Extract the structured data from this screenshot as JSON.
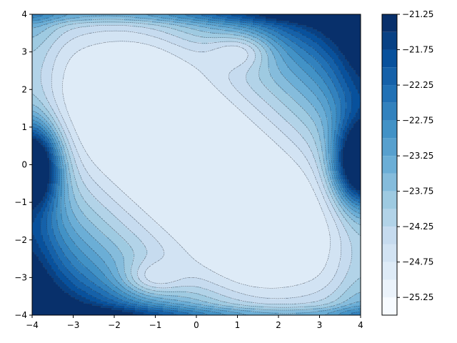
{
  "chart_data": {
    "type": "contour",
    "title": "",
    "xlabel": "",
    "ylabel": "",
    "xlim": [
      -4,
      4
    ],
    "ylim": [
      -4,
      4
    ],
    "x_ticks": [
      "−4",
      "−3",
      "−2",
      "−1",
      "0",
      "1",
      "2",
      "3",
      "4"
    ],
    "y_ticks": [
      "−4",
      "−3",
      "−2",
      "−1",
      "0",
      "1",
      "2",
      "3",
      "4"
    ],
    "grid": false,
    "colormap": "Blues",
    "levels": [
      -25.5,
      -25.25,
      -25.0,
      -24.75,
      -24.5,
      -24.25,
      -24.0,
      -23.75,
      -23.5,
      -23.25,
      -23.0,
      -22.75,
      -22.5,
      -22.25,
      -22.0,
      -21.75,
      -21.5,
      -21.25
    ],
    "colorbar_range": [
      -25.5,
      -21.25
    ],
    "colorbar_ticks": [
      "−21.25",
      "−21.75",
      "−22.25",
      "−22.75",
      "−23.25",
      "−23.75",
      "−24.25",
      "−24.75",
      "−25.25"
    ],
    "minima": [
      {
        "x": 1.1,
        "y": 3.05,
        "value": -25.4
      },
      {
        "x": -1.1,
        "y": -3.05,
        "value": -25.4
      }
    ],
    "maxima": [
      {
        "x": -4.0,
        "y": 0.0,
        "value": -21.3
      },
      {
        "x": 4.0,
        "y": 0.0,
        "value": -21.3
      }
    ],
    "plateau": {
      "value": -24.95,
      "description": "inner region bounded by lowest contour, elongated along the diagonal from (-2.7, 2.4) to (2.7, -2.4)"
    }
  }
}
